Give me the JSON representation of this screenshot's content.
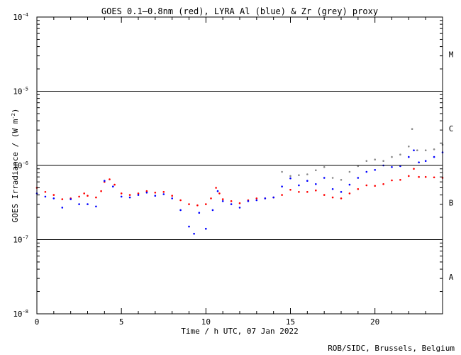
{
  "chart_data": {
    "type": "scatter",
    "title": "GOES 0.1–0.8nm (red), LYRA Al (blue) & Zr (grey) proxy",
    "xlabel": "Time / h UTC, 07 Jan 2022",
    "ylabel_main": "GOES Irradiance / (W m",
    "ylabel_sup": "-2",
    "ylabel_close": ")",
    "y_scale": "log",
    "xlim": [
      0,
      24
    ],
    "ylim": [
      1e-08,
      0.0001
    ],
    "x_ticks": [
      {
        "value": 0,
        "label": "0"
      },
      {
        "value": 5,
        "label": "5"
      },
      {
        "value": 10,
        "label": "10"
      },
      {
        "value": 15,
        "label": "15"
      },
      {
        "value": 20,
        "label": "20"
      }
    ],
    "y_ticks": [
      {
        "exp": -8,
        "base": "10",
        "sup": "-8"
      },
      {
        "exp": -7,
        "base": "10",
        "sup": "-7"
      },
      {
        "exp": -6,
        "base": "10",
        "sup": "-6"
      },
      {
        "exp": -5,
        "base": "10",
        "sup": "-5"
      },
      {
        "exp": -4,
        "base": "10",
        "sup": "-4"
      }
    ],
    "class_thresholds": [
      1e-07,
      1e-06,
      1e-05
    ],
    "flare_classes": [
      {
        "label": "A",
        "y": 3.16e-08
      },
      {
        "label": "B",
        "y": 3.16e-07
      },
      {
        "label": "C",
        "y": 3.16e-06
      },
      {
        "label": "M",
        "y": 3.16e-05
      }
    ],
    "series": [
      {
        "key": "goes",
        "color": "#ff0000",
        "points": [
          [
            0,
            5e-07
          ],
          [
            0.5,
            4.4e-07
          ],
          [
            1.0,
            4e-07
          ],
          [
            1.5,
            3.5e-07
          ],
          [
            2.0,
            3.6e-07
          ],
          [
            2.5,
            3.8e-07
          ],
          [
            2.8,
            4.2e-07
          ],
          [
            3.0,
            3.9e-07
          ],
          [
            3.5,
            3.7e-07
          ],
          [
            3.8,
            4.5e-07
          ],
          [
            4.0,
            6e-07
          ],
          [
            4.3,
            6.5e-07
          ],
          [
            4.6,
            5.5e-07
          ],
          [
            5.0,
            4.2e-07
          ],
          [
            5.5,
            4e-07
          ],
          [
            6.0,
            4.2e-07
          ],
          [
            6.5,
            4.5e-07
          ],
          [
            7.0,
            4.3e-07
          ],
          [
            7.5,
            4.4e-07
          ],
          [
            8.0,
            3.9e-07
          ],
          [
            8.5,
            3.4e-07
          ],
          [
            9.0,
            3e-07
          ],
          [
            9.5,
            2.9e-07
          ],
          [
            10.0,
            3e-07
          ],
          [
            10.3,
            3.6e-07
          ],
          [
            10.6,
            5e-07
          ],
          [
            10.8,
            4.2e-07
          ],
          [
            11.0,
            3.5e-07
          ],
          [
            11.5,
            3.3e-07
          ],
          [
            12.0,
            3.1e-07
          ],
          [
            12.5,
            3.4e-07
          ],
          [
            13.0,
            3.6e-07
          ],
          [
            13.5,
            3.6e-07
          ],
          [
            14.0,
            3.7e-07
          ],
          [
            14.5,
            4e-07
          ],
          [
            15.0,
            4.7e-07
          ],
          [
            15.5,
            4.4e-07
          ],
          [
            16.0,
            4.4e-07
          ],
          [
            16.5,
            4.6e-07
          ],
          [
            17.0,
            4e-07
          ],
          [
            17.5,
            3.7e-07
          ],
          [
            18.0,
            3.6e-07
          ],
          [
            18.5,
            4.2e-07
          ],
          [
            19.0,
            4.8e-07
          ],
          [
            19.5,
            5.4e-07
          ],
          [
            20.0,
            5.3e-07
          ],
          [
            20.5,
            5.6e-07
          ],
          [
            21.0,
            6.3e-07
          ],
          [
            21.5,
            6.4e-07
          ],
          [
            22.0,
            7.2e-07
          ],
          [
            22.3,
            9e-07
          ],
          [
            22.6,
            7e-07
          ],
          [
            23.0,
            7e-07
          ],
          [
            23.5,
            6.9e-07
          ],
          [
            24.0,
            6.8e-07
          ]
        ]
      },
      {
        "key": "lyra_al",
        "color": "#0000ff",
        "points": [
          [
            0,
            4.2e-07
          ],
          [
            0.5,
            3.8e-07
          ],
          [
            1.0,
            3.6e-07
          ],
          [
            1.5,
            2.7e-07
          ],
          [
            2.0,
            3.5e-07
          ],
          [
            2.5,
            3e-07
          ],
          [
            3.0,
            3e-07
          ],
          [
            3.5,
            2.8e-07
          ],
          [
            4.0,
            6.2e-07
          ],
          [
            4.5,
            5.2e-07
          ],
          [
            5.0,
            3.8e-07
          ],
          [
            5.5,
            3.7e-07
          ],
          [
            6.0,
            4e-07
          ],
          [
            6.5,
            4.3e-07
          ],
          [
            7.0,
            3.9e-07
          ],
          [
            7.5,
            4.1e-07
          ],
          [
            8.0,
            3.6e-07
          ],
          [
            8.5,
            2.5e-07
          ],
          [
            9.0,
            1.5e-07
          ],
          [
            9.3,
            1.2e-07
          ],
          [
            9.6,
            2.3e-07
          ],
          [
            10.0,
            1.4e-07
          ],
          [
            10.4,
            2.5e-07
          ],
          [
            10.7,
            4.5e-07
          ],
          [
            11.0,
            3.3e-07
          ],
          [
            11.5,
            3e-07
          ],
          [
            12.0,
            2.7e-07
          ],
          [
            12.5,
            3.3e-07
          ],
          [
            13.0,
            3.4e-07
          ],
          [
            13.5,
            3.6e-07
          ],
          [
            14.0,
            3.7e-07
          ],
          [
            14.5,
            5.2e-07
          ],
          [
            15.0,
            6.7e-07
          ],
          [
            15.5,
            5.4e-07
          ],
          [
            16.0,
            6.2e-07
          ],
          [
            16.5,
            5.6e-07
          ],
          [
            17.0,
            6.8e-07
          ],
          [
            17.5,
            4.8e-07
          ],
          [
            18.0,
            4.4e-07
          ],
          [
            18.5,
            5.5e-07
          ],
          [
            19.0,
            6.8e-07
          ],
          [
            19.5,
            8.2e-07
          ],
          [
            20.0,
            8.7e-07
          ],
          [
            20.5,
            1e-06
          ],
          [
            21.0,
            9.5e-07
          ],
          [
            21.5,
            9.8e-07
          ],
          [
            22.0,
            1.3e-06
          ],
          [
            22.3,
            1.6e-06
          ],
          [
            22.6,
            1.1e-06
          ],
          [
            23.0,
            1.15e-06
          ],
          [
            23.5,
            1.3e-06
          ],
          [
            24.0,
            1.5e-06
          ]
        ]
      },
      {
        "key": "lyra_zr",
        "color": "#888888",
        "points": [
          [
            14.5,
            8.2e-07
          ],
          [
            15.0,
            7.2e-07
          ],
          [
            15.5,
            7.4e-07
          ],
          [
            16.0,
            7.6e-07
          ],
          [
            16.5,
            8.6e-07
          ],
          [
            17.0,
            9.5e-07
          ],
          [
            17.5,
            6.8e-07
          ],
          [
            18.0,
            6.4e-07
          ],
          [
            18.5,
            8.2e-07
          ],
          [
            19.0,
            9.8e-07
          ],
          [
            19.5,
            1.15e-06
          ],
          [
            20.0,
            1.2e-06
          ],
          [
            20.5,
            1.15e-06
          ],
          [
            21.0,
            1.3e-06
          ],
          [
            21.5,
            1.4e-06
          ],
          [
            22.0,
            1.8e-06
          ],
          [
            22.2,
            3.1e-06
          ],
          [
            22.5,
            1.6e-06
          ],
          [
            23.0,
            1.6e-06
          ],
          [
            23.5,
            1.65e-06
          ],
          [
            24.0,
            1.9e-06
          ]
        ]
      }
    ]
  },
  "credit": "ROB/SIDC, Brussels, Belgium"
}
